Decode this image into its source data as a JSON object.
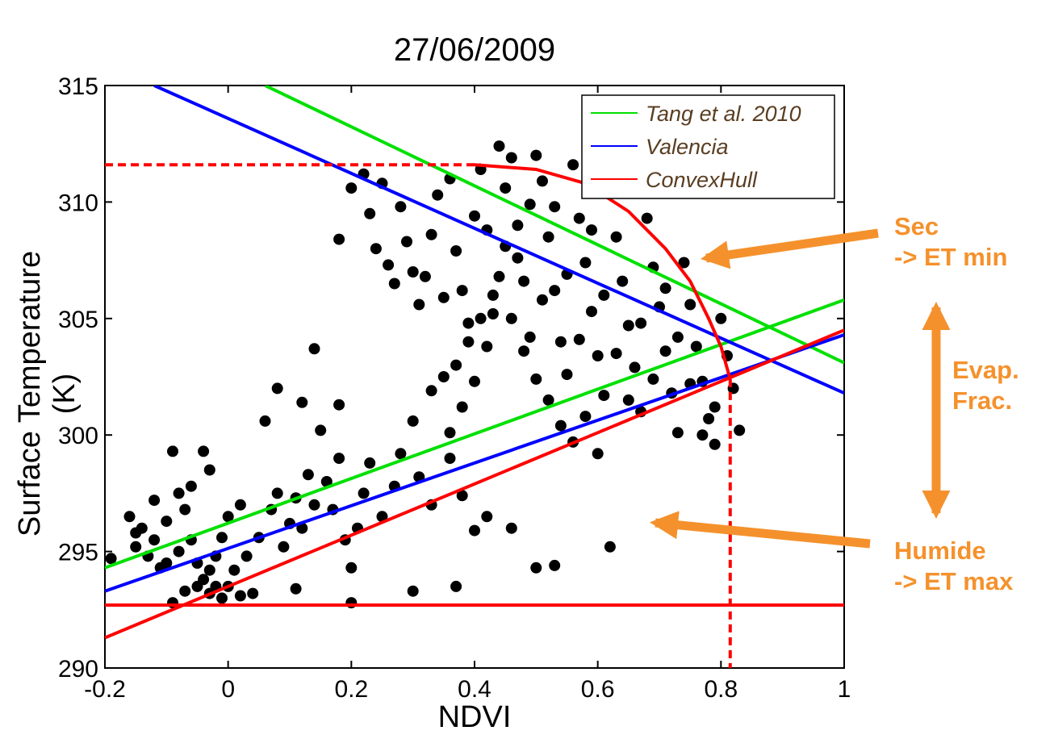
{
  "chart_data": {
    "type": "scatter",
    "title": "27/06/2009",
    "xlabel": "NDVI",
    "ylabel": "Surface Temperature (K)",
    "xlim": [
      -0.2,
      1
    ],
    "ylim": [
      290,
      315
    ],
    "xticks": [
      "-0.2",
      "0",
      "0.2",
      "0.4",
      "0.6",
      "0.8",
      "1"
    ],
    "yticks": [
      "290",
      "295",
      "300",
      "305",
      "310",
      "315"
    ],
    "grid": false,
    "legend_position": "top-right",
    "series": [
      {
        "name": "Tang et al. 2010",
        "kind": "lines",
        "color": "#00e000",
        "lines": [
          {
            "role": "dry edge",
            "points": [
              [
                0.06,
                315.0
              ],
              [
                1.0,
                303.1
              ]
            ]
          },
          {
            "role": "wet edge",
            "points": [
              [
                -0.2,
                294.3
              ],
              [
                1.0,
                305.8
              ]
            ]
          }
        ]
      },
      {
        "name": "Valencia",
        "kind": "lines",
        "color": "#0000ff",
        "lines": [
          {
            "role": "dry edge",
            "points": [
              [
                -0.12,
                315.0
              ],
              [
                1.0,
                301.8
              ]
            ]
          },
          {
            "role": "wet edge",
            "points": [
              [
                -0.2,
                293.3
              ],
              [
                1.0,
                304.3
              ]
            ]
          }
        ]
      },
      {
        "name": "ConvexHull",
        "kind": "lines",
        "color": "#ff0000",
        "lines": [
          {
            "role": "dry edge",
            "points": [
              [
                0.4,
                311.6
              ],
              [
                0.5,
                311.4
              ],
              [
                0.58,
                310.8
              ],
              [
                0.65,
                309.6
              ],
              [
                0.71,
                308.0
              ],
              [
                0.75,
                306.6
              ],
              [
                0.78,
                305.0
              ],
              [
                0.8,
                303.8
              ],
              [
                0.815,
                302.4
              ]
            ]
          },
          {
            "role": "wet edge",
            "points": [
              [
                -0.2,
                291.3
              ],
              [
                1.0,
                304.5
              ]
            ]
          },
          {
            "role": "min temperature",
            "points": [
              [
                -0.2,
                292.7
              ],
              [
                1.0,
                292.7
              ]
            ]
          },
          {
            "role": "max temperature",
            "style": "dashed",
            "points": [
              [
                -0.2,
                311.6
              ],
              [
                0.41,
                311.6
              ]
            ]
          },
          {
            "role": "max NDVI",
            "style": "dashed",
            "points": [
              [
                0.815,
                302.4
              ],
              [
                0.815,
                290.0
              ]
            ]
          }
        ]
      }
    ],
    "scatter_points": [
      [
        -0.19,
        294.7
      ],
      [
        -0.16,
        296.5
      ],
      [
        -0.15,
        295.2
      ],
      [
        -0.14,
        296.0
      ],
      [
        -0.13,
        294.8
      ],
      [
        -0.12,
        295.5
      ],
      [
        -0.1,
        296.3
      ],
      [
        -0.1,
        294.5
      ],
      [
        -0.08,
        297.5
      ],
      [
        -0.07,
        296.8
      ],
      [
        -0.06,
        295.5
      ],
      [
        -0.05,
        294.5
      ],
      [
        -0.04,
        293.8
      ],
      [
        -0.03,
        294.2
      ],
      [
        -0.02,
        293.5
      ],
      [
        -0.01,
        293.0
      ],
      [
        0.0,
        293.5
      ],
      [
        0.01,
        294.2
      ],
      [
        0.02,
        293.1
      ],
      [
        -0.09,
        292.8
      ],
      [
        -0.07,
        293.3
      ],
      [
        -0.05,
        293.5
      ],
      [
        -0.03,
        293.2
      ],
      [
        -0.02,
        294.8
      ],
      [
        -0.01,
        295.6
      ],
      [
        0.0,
        296.5
      ],
      [
        0.02,
        297.0
      ],
      [
        -0.04,
        299.3
      ],
      [
        -0.03,
        298.5
      ],
      [
        -0.06,
        297.8
      ],
      [
        -0.09,
        299.3
      ],
      [
        -0.12,
        297.2
      ],
      [
        -0.15,
        295.8
      ],
      [
        -0.11,
        294.3
      ],
      [
        -0.08,
        295.0
      ],
      [
        0.03,
        294.8
      ],
      [
        0.05,
        295.6
      ],
      [
        0.07,
        296.8
      ],
      [
        0.08,
        297.5
      ],
      [
        0.09,
        295.2
      ],
      [
        0.1,
        296.2
      ],
      [
        0.11,
        297.3
      ],
      [
        0.12,
        296.0
      ],
      [
        0.13,
        298.3
      ],
      [
        0.14,
        297.0
      ],
      [
        0.15,
        300.2
      ],
      [
        0.16,
        298.0
      ],
      [
        0.17,
        296.8
      ],
      [
        0.18,
        299.0
      ],
      [
        0.19,
        295.5
      ],
      [
        0.2,
        294.3
      ],
      [
        0.21,
        296.0
      ],
      [
        0.22,
        297.5
      ],
      [
        0.23,
        298.8
      ],
      [
        0.25,
        296.5
      ],
      [
        0.27,
        297.8
      ],
      [
        0.28,
        299.2
      ],
      [
        0.3,
        300.6
      ],
      [
        0.31,
        298.2
      ],
      [
        0.33,
        297.0
      ],
      [
        0.36,
        299.0
      ],
      [
        0.38,
        297.4
      ],
      [
        0.4,
        295.9
      ],
      [
        0.42,
        296.5
      ],
      [
        0.46,
        296.0
      ],
      [
        0.5,
        294.3
      ],
      [
        0.53,
        294.4
      ],
      [
        0.62,
        295.2
      ],
      [
        0.06,
        300.6
      ],
      [
        0.08,
        302.0
      ],
      [
        0.12,
        301.4
      ],
      [
        0.18,
        301.3
      ],
      [
        0.14,
        303.7
      ],
      [
        0.2,
        292.8
      ],
      [
        0.3,
        293.3
      ],
      [
        0.11,
        293.4
      ],
      [
        0.04,
        293.2
      ],
      [
        0.37,
        293.5
      ],
      [
        0.18,
        308.4
      ],
      [
        0.2,
        310.6
      ],
      [
        0.22,
        311.2
      ],
      [
        0.23,
        309.5
      ],
      [
        0.24,
        308.0
      ],
      [
        0.25,
        310.8
      ],
      [
        0.26,
        307.3
      ],
      [
        0.27,
        306.5
      ],
      [
        0.28,
        309.8
      ],
      [
        0.29,
        308.3
      ],
      [
        0.3,
        307.0
      ],
      [
        0.31,
        305.6
      ],
      [
        0.32,
        306.8
      ],
      [
        0.33,
        308.6
      ],
      [
        0.34,
        310.3
      ],
      [
        0.35,
        305.9
      ],
      [
        0.36,
        311.0
      ],
      [
        0.37,
        307.9
      ],
      [
        0.38,
        306.2
      ],
      [
        0.39,
        304.8
      ],
      [
        0.4,
        309.4
      ],
      [
        0.41,
        311.4
      ],
      [
        0.42,
        308.8
      ],
      [
        0.43,
        305.2
      ],
      [
        0.44,
        312.4
      ],
      [
        0.45,
        310.6
      ],
      [
        0.46,
        311.9
      ],
      [
        0.47,
        309.0
      ],
      [
        0.48,
        306.6
      ],
      [
        0.49,
        304.2
      ],
      [
        0.5,
        312.0
      ],
      [
        0.51,
        310.9
      ],
      [
        0.52,
        308.5
      ],
      [
        0.53,
        306.2
      ],
      [
        0.54,
        304.0
      ],
      [
        0.55,
        302.6
      ],
      [
        0.56,
        311.6
      ],
      [
        0.57,
        309.3
      ],
      [
        0.58,
        307.4
      ],
      [
        0.59,
        305.3
      ],
      [
        0.6,
        303.4
      ],
      [
        0.61,
        301.7
      ],
      [
        0.62,
        310.8
      ],
      [
        0.63,
        308.5
      ],
      [
        0.64,
        306.6
      ],
      [
        0.65,
        304.7
      ],
      [
        0.66,
        302.9
      ],
      [
        0.67,
        301.0
      ],
      [
        0.68,
        309.3
      ],
      [
        0.69,
        307.2
      ],
      [
        0.7,
        305.5
      ],
      [
        0.71,
        303.6
      ],
      [
        0.72,
        301.8
      ],
      [
        0.73,
        300.1
      ],
      [
        0.74,
        307.4
      ],
      [
        0.75,
        305.6
      ],
      [
        0.76,
        303.8
      ],
      [
        0.77,
        302.3
      ],
      [
        0.78,
        300.7
      ],
      [
        0.79,
        299.6
      ],
      [
        0.8,
        305.0
      ],
      [
        0.81,
        303.4
      ],
      [
        0.82,
        302.0
      ],
      [
        0.83,
        300.2
      ],
      [
        0.44,
        306.8
      ],
      [
        0.46,
        305.0
      ],
      [
        0.48,
        303.6
      ],
      [
        0.5,
        302.4
      ],
      [
        0.52,
        301.5
      ],
      [
        0.54,
        300.4
      ],
      [
        0.56,
        299.7
      ],
      [
        0.58,
        300.8
      ],
      [
        0.6,
        299.2
      ],
      [
        0.42,
        303.8
      ],
      [
        0.4,
        302.3
      ],
      [
        0.38,
        301.2
      ],
      [
        0.36,
        300.1
      ],
      [
        0.47,
        307.6
      ],
      [
        0.51,
        305.8
      ],
      [
        0.55,
        306.9
      ],
      [
        0.57,
        304.1
      ],
      [
        0.61,
        306.0
      ],
      [
        0.63,
        303.5
      ],
      [
        0.65,
        301.5
      ],
      [
        0.67,
        304.8
      ],
      [
        0.69,
        302.4
      ],
      [
        0.71,
        306.3
      ],
      [
        0.73,
        304.2
      ],
      [
        0.75,
        302.2
      ],
      [
        0.77,
        300.0
      ],
      [
        0.79,
        301.2
      ],
      [
        0.53,
        309.8
      ],
      [
        0.59,
        308.8
      ],
      [
        0.49,
        309.9
      ],
      [
        0.45,
        308.1
      ],
      [
        0.43,
        306.0
      ],
      [
        0.41,
        305.0
      ],
      [
        0.39,
        304.0
      ],
      [
        0.37,
        303.0
      ],
      [
        0.35,
        302.5
      ],
      [
        0.33,
        301.9
      ]
    ],
    "annotations": [
      {
        "lines": [
          "Sec",
          "-> ET min"
        ]
      },
      {
        "lines": [
          "Evap.",
          "Frac."
        ]
      },
      {
        "lines": [
          "Humide",
          "-> ET max"
        ]
      }
    ],
    "annotation_color": "#f5912c"
  }
}
